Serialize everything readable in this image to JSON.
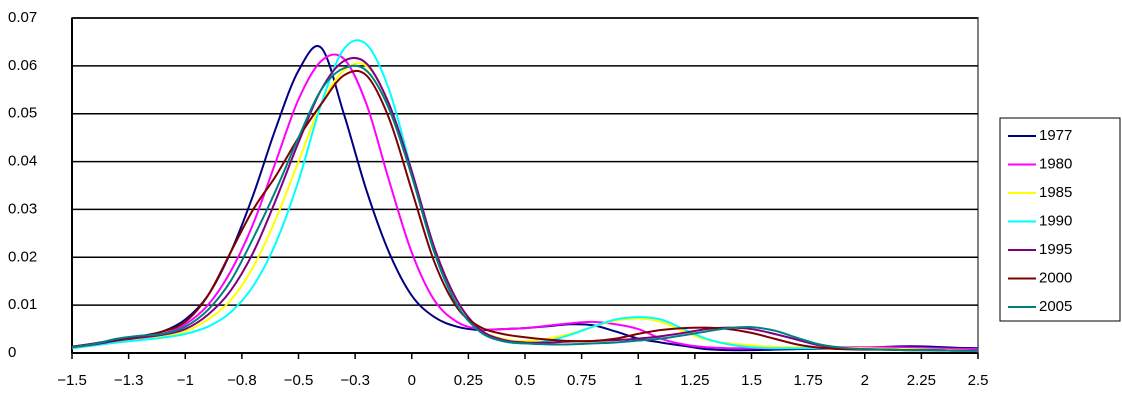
{
  "chart_data": {
    "type": "line",
    "x": [
      -1.5,
      -1.4,
      -1.3,
      -1.2,
      -1.1,
      -1.0,
      -0.9,
      -0.8,
      -0.7,
      -0.6,
      -0.5,
      -0.4,
      -0.3,
      -0.2,
      -0.1,
      0,
      0.1,
      0.2,
      0.3,
      0.4,
      0.5,
      0.6,
      0.7,
      0.8,
      0.9,
      1.0,
      1.1,
      1.2,
      1.3,
      1.4,
      1.5,
      1.6,
      1.7,
      1.8,
      1.9,
      2.0,
      2.1,
      2.2,
      2.3,
      2.4,
      2.5
    ],
    "series": [
      {
        "name": "1977",
        "color": "#000080",
        "values": [
          0.0013,
          0.002,
          0.0028,
          0.0035,
          0.0045,
          0.007,
          0.012,
          0.021,
          0.033,
          0.047,
          0.059,
          0.0638,
          0.05,
          0.034,
          0.021,
          0.012,
          0.0075,
          0.0055,
          0.0048,
          0.005,
          0.0052,
          0.0056,
          0.006,
          0.0058,
          0.0045,
          0.003,
          0.0022,
          0.0015,
          0.0008,
          0.0006,
          0.0006,
          0.0007,
          0.0008,
          0.0009,
          0.001,
          0.0011,
          0.0013,
          0.0014,
          0.0013,
          0.0011,
          0.001
        ]
      },
      {
        "name": "1980",
        "color": "#ff00ff",
        "values": [
          0.0013,
          0.002,
          0.0027,
          0.0032,
          0.004,
          0.006,
          0.01,
          0.017,
          0.027,
          0.04,
          0.053,
          0.061,
          0.0615,
          0.052,
          0.036,
          0.021,
          0.011,
          0.0065,
          0.005,
          0.005,
          0.0052,
          0.0057,
          0.0062,
          0.0065,
          0.006,
          0.005,
          0.003,
          0.0018,
          0.0012,
          0.001,
          0.001,
          0.001,
          0.0011,
          0.0012,
          0.0012,
          0.0012,
          0.0012,
          0.0011,
          0.001,
          0.0009,
          0.0008
        ]
      },
      {
        "name": "1985",
        "color": "#ffff00",
        "values": [
          0.0012,
          0.0018,
          0.0025,
          0.003,
          0.0035,
          0.0045,
          0.007,
          0.011,
          0.018,
          0.028,
          0.04,
          0.052,
          0.059,
          0.06,
          0.052,
          0.037,
          0.022,
          0.011,
          0.005,
          0.003,
          0.0025,
          0.003,
          0.004,
          0.0055,
          0.0068,
          0.0072,
          0.0065,
          0.0045,
          0.0028,
          0.002,
          0.0016,
          0.0013,
          0.0012,
          0.0012,
          0.0011,
          0.001,
          0.0009,
          0.0008,
          0.0007,
          0.0006,
          0.0005
        ]
      },
      {
        "name": "1990",
        "color": "#00ffff",
        "values": [
          0.001,
          0.0016,
          0.0022,
          0.0027,
          0.0032,
          0.004,
          0.0055,
          0.0085,
          0.014,
          0.023,
          0.036,
          0.052,
          0.0635,
          0.0645,
          0.055,
          0.038,
          0.021,
          0.01,
          0.0045,
          0.0025,
          0.002,
          0.0025,
          0.0038,
          0.0055,
          0.007,
          0.0075,
          0.007,
          0.005,
          0.003,
          0.0018,
          0.0012,
          0.001,
          0.001,
          0.001,
          0.0009,
          0.0008,
          0.0007,
          0.0006,
          0.0005,
          0.0005,
          0.0004
        ]
      },
      {
        "name": "1995",
        "color": "#800080",
        "values": [
          0.0012,
          0.0018,
          0.0026,
          0.0032,
          0.0038,
          0.005,
          0.008,
          0.013,
          0.021,
          0.032,
          0.044,
          0.055,
          0.061,
          0.0605,
          0.052,
          0.038,
          0.022,
          0.011,
          0.005,
          0.0028,
          0.0022,
          0.0022,
          0.0024,
          0.0025,
          0.0027,
          0.003,
          0.0035,
          0.0042,
          0.005,
          0.0053,
          0.005,
          0.004,
          0.0028,
          0.0016,
          0.001,
          0.0008,
          0.0007,
          0.0006,
          0.0006,
          0.0005,
          0.0005
        ]
      },
      {
        "name": "2000",
        "color": "#800000",
        "values": [
          0.0013,
          0.002,
          0.0028,
          0.0035,
          0.0045,
          0.0065,
          0.012,
          0.021,
          0.03,
          0.037,
          0.045,
          0.052,
          0.058,
          0.058,
          0.049,
          0.034,
          0.019,
          0.0095,
          0.0055,
          0.004,
          0.0033,
          0.0028,
          0.0025,
          0.0025,
          0.003,
          0.004,
          0.0048,
          0.0052,
          0.0053,
          0.005,
          0.0042,
          0.003,
          0.0018,
          0.0011,
          0.0008,
          0.0007,
          0.0007,
          0.0006,
          0.0006,
          0.0005,
          0.0005
        ]
      },
      {
        "name": "2005",
        "color": "#008080",
        "values": [
          0.0012,
          0.0019,
          0.003,
          0.0036,
          0.004,
          0.0055,
          0.009,
          0.015,
          0.024,
          0.034,
          0.045,
          0.055,
          0.0595,
          0.059,
          0.051,
          0.037,
          0.021,
          0.01,
          0.0045,
          0.0025,
          0.002,
          0.0018,
          0.0018,
          0.002,
          0.0022,
          0.0026,
          0.003,
          0.0037,
          0.0045,
          0.0052,
          0.0054,
          0.0047,
          0.0032,
          0.0018,
          0.0011,
          0.0008,
          0.0007,
          0.0006,
          0.0006,
          0.0005,
          0.0005
        ]
      }
    ],
    "xlim": [
      -1.5,
      2.5
    ],
    "xticks": [
      {
        "value": -1.5,
        "label": "−1.5"
      },
      {
        "value": -1.25,
        "label": "−1.3"
      },
      {
        "value": -1,
        "label": "−1"
      },
      {
        "value": -0.75,
        "label": "−0.8"
      },
      {
        "value": -0.5,
        "label": "−0.5"
      },
      {
        "value": -0.25,
        "label": "−0.3"
      },
      0,
      0.25,
      0.5,
      0.75,
      1,
      1.25,
      1.5,
      1.75,
      2,
      2.25,
      2.5
    ],
    "ylim": [
      0,
      0.07
    ],
    "yticks": [
      0,
      0.01,
      0.02,
      0.03,
      0.04,
      0.05,
      0.06,
      0.07
    ],
    "grid": true,
    "legend": "right"
  }
}
